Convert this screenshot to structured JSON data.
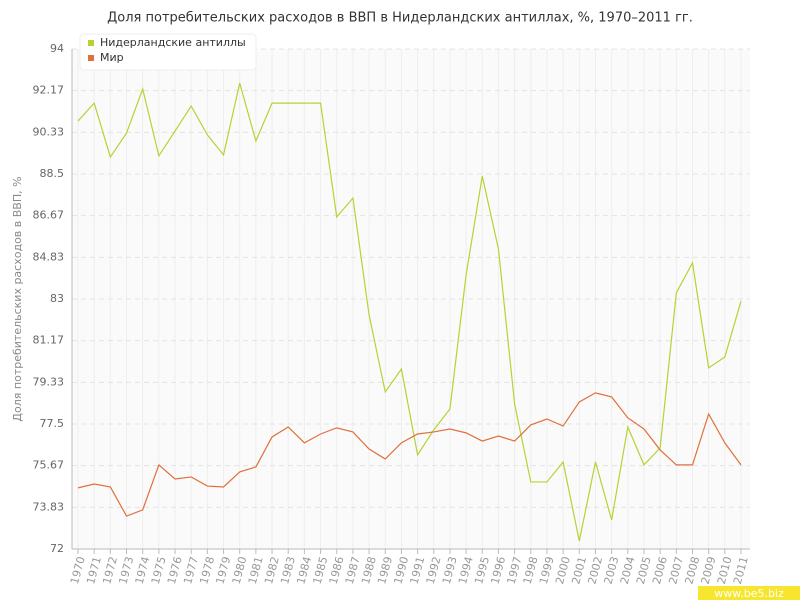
{
  "chart_data": {
    "type": "line",
    "title": "Доля потребительских расходов в ВВП в Нидерландских антиллах, %, 1970–2011 гг.",
    "y_label": "Доля потребительских расходов в ВВП, %",
    "categories": [
      "1970",
      "1971",
      "1972",
      "1973",
      "1974",
      "1975",
      "1976",
      "1977",
      "1978",
      "1979",
      "1980",
      "1981",
      "1982",
      "1983",
      "1984",
      "1985",
      "1986",
      "1987",
      "1988",
      "1989",
      "1990",
      "1991",
      "1992",
      "1993",
      "1994",
      "1995",
      "1996",
      "1997",
      "1998",
      "1999",
      "2000",
      "2001",
      "2002",
      "2003",
      "2004",
      "2005",
      "2006",
      "2007",
      "2008",
      "2009",
      "2010",
      "2011"
    ],
    "series": [
      {
        "name": "Нидерландские антиллы",
        "color": "#b5d334",
        "values": [
          90.83,
          91.62,
          89.25,
          90.3,
          92.24,
          89.3,
          90.39,
          91.49,
          90.22,
          89.34,
          92.5,
          89.95,
          91.62,
          91.62,
          91.62,
          91.62,
          86.61,
          87.44,
          82.3,
          78.91,
          79.92,
          76.14,
          77.24,
          78.16,
          84.06,
          88.41,
          85.2,
          78.38,
          74.95,
          74.95,
          75.83,
          72.35,
          75.83,
          73.28,
          77.37,
          75.7,
          76.45,
          83.27,
          84.59,
          79.97,
          80.45,
          82.91
        ]
      },
      {
        "name": "Мир",
        "color": "#e0703c",
        "values": [
          74.69,
          74.86,
          74.73,
          73.45,
          73.72,
          75.7,
          75.08,
          75.17,
          74.77,
          74.73,
          75.39,
          75.61,
          76.93,
          77.37,
          76.67,
          77.06,
          77.33,
          77.15,
          76.4,
          75.96,
          76.67,
          77.06,
          77.15,
          77.28,
          77.11,
          76.75,
          76.97,
          76.75,
          77.46,
          77.72,
          77.41,
          78.47,
          78.87,
          78.69,
          77.77,
          77.28,
          76.36,
          75.7,
          75.7,
          77.94,
          76.67,
          75.7
        ]
      }
    ],
    "ylim": [
      72,
      94
    ],
    "yticks": [
      72,
      73.83,
      75.67,
      77.5,
      79.33,
      81.17,
      83,
      84.83,
      86.67,
      88.5,
      90.33,
      92.17,
      94
    ],
    "grid": true,
    "legend": "top-left",
    "watermark": "www.be5.biz"
  }
}
